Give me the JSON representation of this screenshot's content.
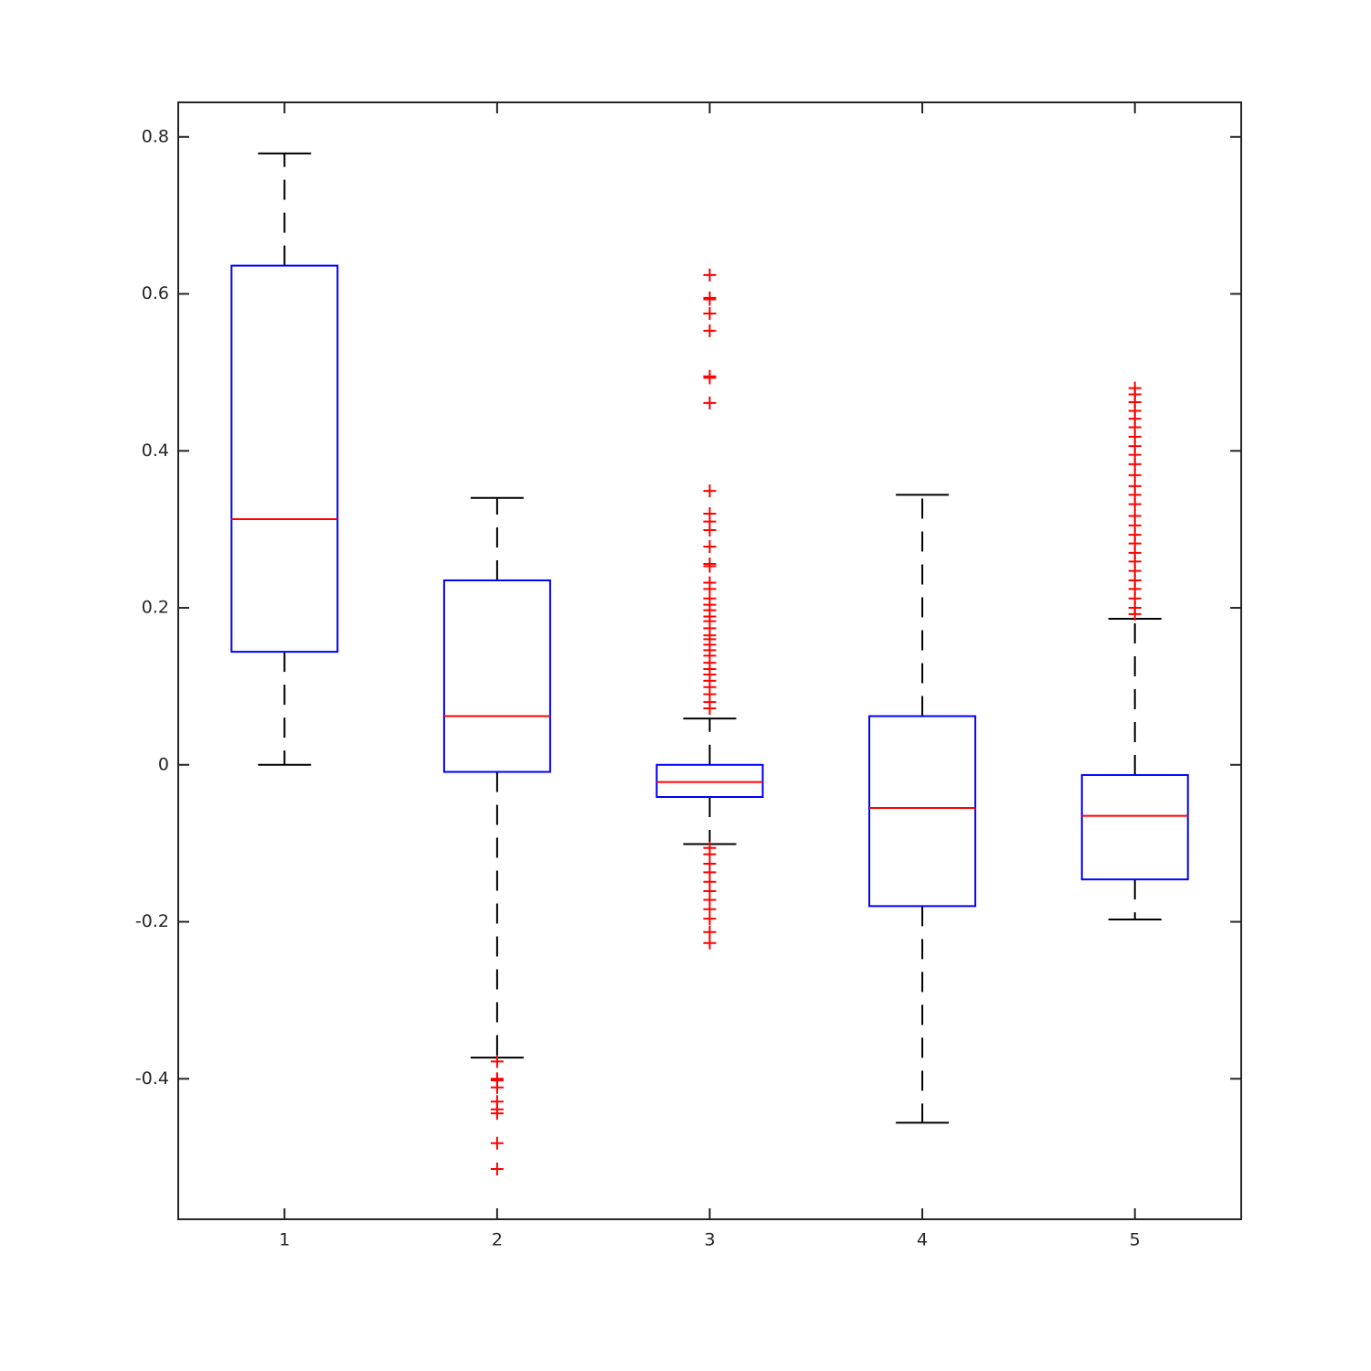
{
  "chart_data": {
    "type": "box",
    "x": [
      1,
      2,
      3,
      4,
      5
    ],
    "xlim": [
      0.5,
      5.5
    ],
    "xticks": [
      1,
      2,
      3,
      4,
      5
    ],
    "ylim": [
      -0.579,
      0.844
    ],
    "yticks": [
      -0.4,
      -0.2,
      0,
      0.2,
      0.4,
      0.6,
      0.8
    ],
    "box_color": "#0000ff",
    "median_color": "#ff0000",
    "whisker_color": "#000000",
    "outlier_color": "#ff0000",
    "boxes": [
      {
        "whislo": 0.0,
        "q1": 0.144,
        "med": 0.313,
        "q3": 0.636,
        "whishi": 0.779,
        "fliers": []
      },
      {
        "whislo": -0.373,
        "q1": -0.009,
        "med": 0.062,
        "q3": 0.235,
        "whishi": 0.34,
        "fliers": [
          -0.378,
          -0.4,
          -0.402,
          -0.411,
          -0.429,
          -0.439,
          -0.444,
          -0.482,
          -0.515
        ]
      },
      {
        "whislo": -0.101,
        "q1": -0.041,
        "med": -0.022,
        "q3": 0.0,
        "whishi": 0.059,
        "fliers": [
          0.624,
          0.595,
          0.593,
          0.575,
          0.553,
          0.495,
          0.493,
          0.461,
          0.349,
          0.32,
          0.31,
          0.299,
          0.278,
          0.256,
          0.253,
          0.232,
          0.224,
          0.212,
          0.204,
          0.197,
          0.189,
          0.183,
          0.174,
          0.165,
          0.16,
          0.153,
          0.146,
          0.139,
          0.13,
          0.122,
          0.115,
          0.107,
          0.099,
          0.09,
          0.08,
          0.072,
          -0.106,
          -0.114,
          -0.126,
          -0.137,
          -0.149,
          -0.161,
          -0.172,
          -0.184,
          -0.196,
          -0.213,
          -0.227
        ]
      },
      {
        "whislo": -0.456,
        "q1": -0.18,
        "med": -0.055,
        "q3": 0.062,
        "whishi": 0.344,
        "fliers": []
      },
      {
        "whislo": -0.197,
        "q1": -0.146,
        "med": -0.065,
        "q3": -0.013,
        "whishi": 0.186,
        "fliers": [
          0.48,
          0.472,
          0.462,
          0.451,
          0.441,
          0.43,
          0.418,
          0.406,
          0.395,
          0.383,
          0.369,
          0.355,
          0.344,
          0.332,
          0.317,
          0.305,
          0.293,
          0.282,
          0.27,
          0.259,
          0.247,
          0.235,
          0.224,
          0.212,
          0.2,
          0.192
        ]
      }
    ]
  }
}
